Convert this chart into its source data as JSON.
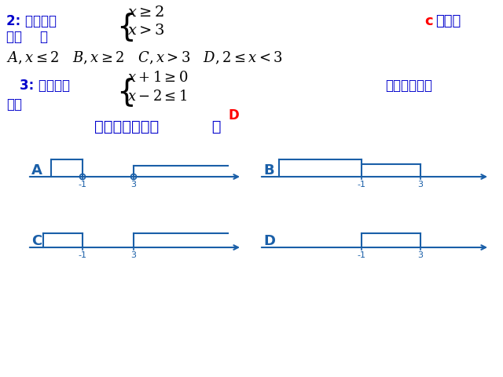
{
  "bg_color": "#ffffff",
  "blue": "#0000CC",
  "red": "#FF0000",
  "teal": "#1A5FA8",
  "fig_w": 6.4,
  "fig_h": 4.8,
  "dpi": 100,
  "q2_label": "2: 不等式组",
  "q2_c_red": "c",
  "q2_c_suffix": "的解集",
  "q2_shi": "是（    ）",
  "q2_eq1": "$x\\geq2$",
  "q2_eq2": "$x>3$",
  "q2_opts": "$A,x\\leq2$   $B,x\\geq2$   $C,x>3$   $D,2\\leq x<3$",
  "q3_label": "3: 不等式组",
  "q3_suffix": "的解集在数轴",
  "q3_wrap": "上的",
  "q3_eq1": "$x+1\\geq0$",
  "q3_eq2": "$x-2\\leq1$",
  "q3_ans": "D",
  "q3_bottom": "表示正确的是（          ）",
  "panel_labels": [
    "A",
    "B",
    "C",
    "D"
  ],
  "ticks": [
    "-1",
    "3"
  ]
}
